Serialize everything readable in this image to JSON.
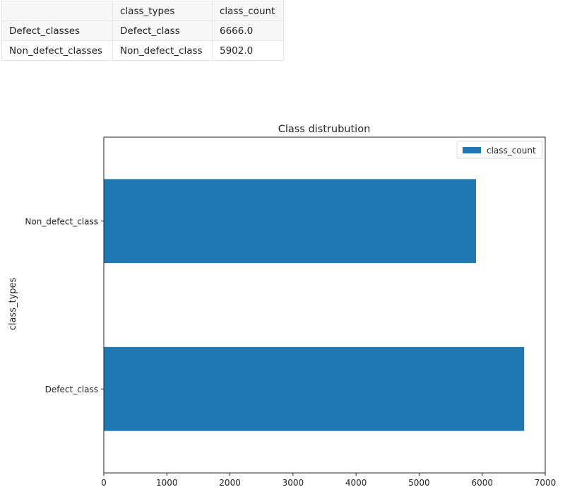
{
  "table": {
    "columns": [
      "",
      "class_types",
      "class_count"
    ],
    "rows": [
      {
        "index": "Defect_classes",
        "class_types": "Defect_class",
        "class_count": "6666.0"
      },
      {
        "index": "Non_defect_classes",
        "class_types": "Non_defect_class",
        "class_count": "5902.0"
      }
    ]
  },
  "chart_data": {
    "type": "bar",
    "orientation": "horizontal",
    "title": "Class distrubution",
    "xlabel": "",
    "ylabel": "class_types",
    "categories": [
      "Defect_class",
      "Non_defect_class"
    ],
    "series": [
      {
        "name": "class_count",
        "values": [
          6666,
          5902
        ],
        "color": "#1f77b4"
      }
    ],
    "xlim": [
      0,
      7000
    ],
    "xticks": [
      0,
      1000,
      2000,
      3000,
      4000,
      5000,
      6000,
      7000
    ],
    "grid": false,
    "legend": "top-right"
  }
}
